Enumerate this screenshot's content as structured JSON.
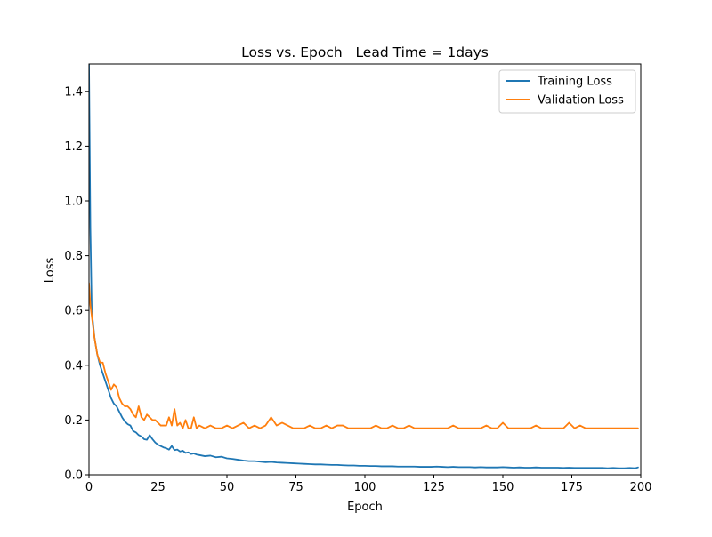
{
  "chart_data": {
    "type": "line",
    "title": "Loss vs. Epoch   Lead Time = 1days",
    "xlabel": "Epoch",
    "ylabel": "Loss",
    "xlim": [
      0,
      200
    ],
    "ylim": [
      0,
      1.5
    ],
    "xticks": [
      0,
      25,
      50,
      75,
      100,
      125,
      150,
      175,
      200
    ],
    "xtick_labels": [
      "0",
      "25",
      "50",
      "75",
      "100",
      "125",
      "150",
      "175",
      "200"
    ],
    "yticks": [
      0.0,
      0.2,
      0.4,
      0.6,
      0.8,
      1.0,
      1.2,
      1.4
    ],
    "ytick_labels": [
      "0.0",
      "0.2",
      "0.4",
      "0.6",
      "0.8",
      "1.0",
      "1.2",
      "1.4"
    ],
    "grid": false,
    "legend": {
      "position": "top-right",
      "entries": [
        "Training Loss",
        "Validation Loss"
      ]
    },
    "series": [
      {
        "name": "Training Loss",
        "color": "#1f77b4",
        "x": [
          0,
          0.5,
          1,
          2,
          3,
          4,
          5,
          6,
          7,
          8,
          9,
          10,
          11,
          12,
          13,
          14,
          15,
          16,
          17,
          18,
          19,
          20,
          21,
          22,
          23,
          24,
          25,
          26,
          27,
          28,
          29,
          30,
          31,
          32,
          33,
          34,
          35,
          36,
          37,
          38,
          39,
          40,
          42,
          44,
          46,
          48,
          50,
          52,
          54,
          56,
          58,
          60,
          62,
          64,
          66,
          68,
          70,
          72,
          74,
          76,
          78,
          80,
          82,
          84,
          86,
          88,
          90,
          92,
          94,
          96,
          98,
          100,
          102,
          104,
          106,
          108,
          110,
          112,
          114,
          116,
          118,
          120,
          122,
          124,
          126,
          128,
          130,
          132,
          134,
          136,
          138,
          140,
          142,
          144,
          146,
          148,
          150,
          152,
          154,
          156,
          158,
          160,
          162,
          164,
          166,
          168,
          170,
          172,
          174,
          176,
          178,
          180,
          182,
          184,
          186,
          188,
          190,
          192,
          194,
          196,
          198,
          199
        ],
        "y": [
          1.5,
          0.9,
          0.6,
          0.5,
          0.44,
          0.4,
          0.37,
          0.34,
          0.31,
          0.28,
          0.26,
          0.25,
          0.23,
          0.21,
          0.195,
          0.185,
          0.18,
          0.16,
          0.155,
          0.145,
          0.14,
          0.13,
          0.128,
          0.145,
          0.13,
          0.118,
          0.11,
          0.105,
          0.1,
          0.097,
          0.092,
          0.105,
          0.09,
          0.092,
          0.085,
          0.088,
          0.08,
          0.082,
          0.076,
          0.078,
          0.074,
          0.072,
          0.068,
          0.07,
          0.064,
          0.066,
          0.06,
          0.058,
          0.055,
          0.052,
          0.05,
          0.05,
          0.048,
          0.046,
          0.047,
          0.045,
          0.044,
          0.043,
          0.042,
          0.041,
          0.04,
          0.039,
          0.038,
          0.038,
          0.037,
          0.036,
          0.036,
          0.035,
          0.034,
          0.034,
          0.033,
          0.033,
          0.032,
          0.032,
          0.031,
          0.031,
          0.031,
          0.03,
          0.03,
          0.03,
          0.03,
          0.029,
          0.029,
          0.029,
          0.03,
          0.029,
          0.028,
          0.029,
          0.028,
          0.028,
          0.028,
          0.027,
          0.028,
          0.027,
          0.027,
          0.027,
          0.028,
          0.027,
          0.026,
          0.027,
          0.026,
          0.026,
          0.027,
          0.026,
          0.026,
          0.026,
          0.026,
          0.025,
          0.026,
          0.025,
          0.025,
          0.025,
          0.025,
          0.025,
          0.025,
          0.024,
          0.025,
          0.024,
          0.024,
          0.025,
          0.024,
          0.027
        ]
      },
      {
        "name": "Validation Loss",
        "color": "#ff7f0e",
        "x": [
          0,
          0.5,
          1,
          2,
          3,
          4,
          5,
          6,
          7,
          8,
          9,
          10,
          11,
          12,
          13,
          14,
          15,
          16,
          17,
          18,
          19,
          20,
          21,
          22,
          23,
          24,
          25,
          26,
          27,
          28,
          29,
          30,
          31,
          32,
          33,
          34,
          35,
          36,
          37,
          38,
          39,
          40,
          42,
          44,
          46,
          48,
          50,
          52,
          54,
          56,
          58,
          60,
          62,
          64,
          66,
          68,
          70,
          72,
          74,
          76,
          78,
          80,
          82,
          84,
          86,
          88,
          90,
          92,
          94,
          96,
          98,
          100,
          102,
          104,
          106,
          108,
          110,
          112,
          114,
          116,
          118,
          120,
          122,
          124,
          126,
          128,
          130,
          132,
          134,
          136,
          138,
          140,
          142,
          144,
          146,
          148,
          150,
          152,
          154,
          156,
          158,
          160,
          162,
          164,
          166,
          168,
          170,
          172,
          174,
          176,
          178,
          180,
          182,
          184,
          186,
          188,
          190,
          192,
          194,
          196,
          198,
          199
        ],
        "y": [
          0.7,
          0.62,
          0.58,
          0.5,
          0.44,
          0.41,
          0.41,
          0.37,
          0.34,
          0.31,
          0.33,
          0.32,
          0.28,
          0.26,
          0.25,
          0.25,
          0.24,
          0.22,
          0.21,
          0.25,
          0.21,
          0.2,
          0.22,
          0.21,
          0.2,
          0.2,
          0.19,
          0.18,
          0.18,
          0.18,
          0.21,
          0.18,
          0.24,
          0.18,
          0.19,
          0.17,
          0.2,
          0.17,
          0.17,
          0.21,
          0.17,
          0.18,
          0.17,
          0.18,
          0.17,
          0.17,
          0.18,
          0.17,
          0.18,
          0.19,
          0.17,
          0.18,
          0.17,
          0.18,
          0.21,
          0.18,
          0.19,
          0.18,
          0.17,
          0.17,
          0.17,
          0.18,
          0.17,
          0.17,
          0.18,
          0.17,
          0.18,
          0.18,
          0.17,
          0.17,
          0.17,
          0.17,
          0.17,
          0.18,
          0.17,
          0.17,
          0.18,
          0.17,
          0.17,
          0.18,
          0.17,
          0.17,
          0.17,
          0.17,
          0.17,
          0.17,
          0.17,
          0.18,
          0.17,
          0.17,
          0.17,
          0.17,
          0.17,
          0.18,
          0.17,
          0.17,
          0.19,
          0.17,
          0.17,
          0.17,
          0.17,
          0.17,
          0.18,
          0.17,
          0.17,
          0.17,
          0.17,
          0.17,
          0.19,
          0.17,
          0.18,
          0.17,
          0.17,
          0.17,
          0.17,
          0.17,
          0.17,
          0.17,
          0.17,
          0.17,
          0.17,
          0.17
        ]
      }
    ]
  }
}
